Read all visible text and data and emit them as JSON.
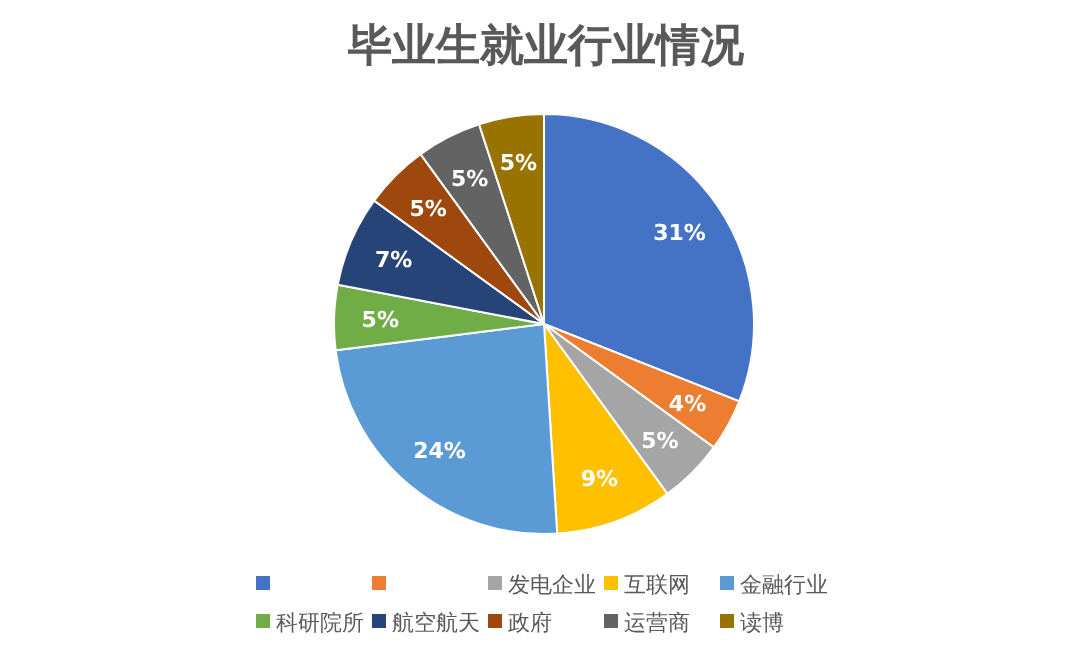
{
  "chart_data": {
    "type": "pie",
    "title": "毕业生就业行业情况",
    "categories": [
      null,
      null,
      "发电企业",
      "互联网",
      "金融行业",
      "科研院所",
      "航空航天",
      "政府",
      "运营商",
      "读博"
    ],
    "values": [
      31,
      4,
      5,
      9,
      24,
      5,
      7,
      5,
      5,
      5
    ],
    "colors": [
      "#4472c4",
      "#ed7d31",
      "#a5a5a5",
      "#ffc000",
      "#5b9bd5",
      "#70ad47",
      "#264478",
      "#9e480e",
      "#636363",
      "#997300"
    ],
    "value_labels": [
      "31%",
      "4%",
      "5%",
      "9%",
      "24%",
      "5%",
      "7%",
      "5%",
      "5%",
      "5%"
    ],
    "legend": "bottom"
  }
}
